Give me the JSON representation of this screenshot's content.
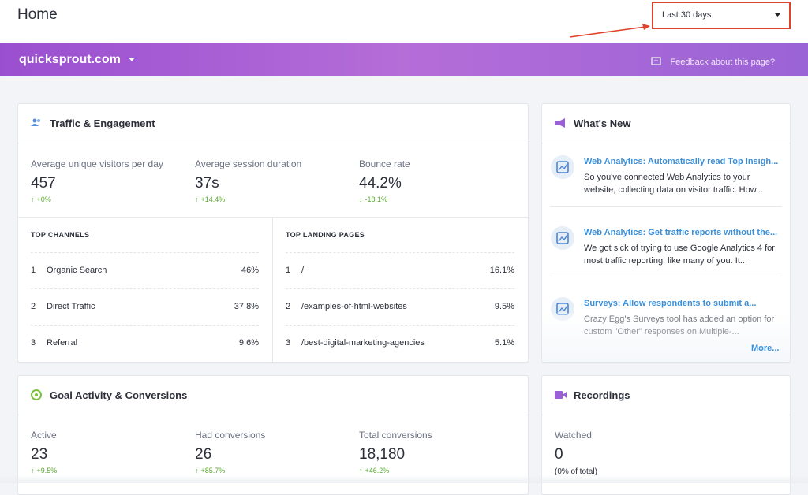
{
  "header": {
    "title": "Home",
    "date_range": "Last 30 days"
  },
  "site_bar": {
    "site": "quicksprout.com",
    "feedback": "Feedback about this page?"
  },
  "traffic": {
    "title": "Traffic & Engagement",
    "metrics": [
      {
        "label": "Average unique visitors per day",
        "value": "457",
        "change": "+0%"
      },
      {
        "label": "Average session duration",
        "value": "37s",
        "change": "+14.4%"
      },
      {
        "label": "Bounce rate",
        "value": "44.2%",
        "change": "-18.1%"
      }
    ],
    "channels": {
      "title": "TOP CHANNELS",
      "rows": [
        [
          "1",
          "Organic Search",
          "46%"
        ],
        [
          "2",
          "Direct Traffic",
          "37.8%"
        ],
        [
          "3",
          "Referral",
          "9.6%"
        ]
      ]
    },
    "landing_pages": {
      "title": "TOP LANDING PAGES",
      "rows": [
        [
          "1",
          "/",
          "16.1%"
        ],
        [
          "2",
          "/examples-of-html-websites",
          "9.5%"
        ],
        [
          "3",
          "/best-digital-marketing-agencies",
          "5.1%"
        ]
      ]
    }
  },
  "whats_new": {
    "title": "What's New",
    "items": [
      {
        "title": "Web Analytics: Automatically read Top Insigh...",
        "body": "So you've connected Web Analytics to your website, collecting data on visitor traffic. How..."
      },
      {
        "title": "Web Analytics: Get traffic reports without the...",
        "body": "We got sick of trying to use Google Analytics 4 for most traffic reporting, like many of you. It..."
      },
      {
        "title": "Surveys: Allow respondents to submit a...",
        "body": "Crazy Egg's Surveys tool has added an option for custom \"Other\" responses on Multiple-..."
      }
    ],
    "more": "More..."
  },
  "goals": {
    "title": "Goal Activity & Conversions",
    "metrics": [
      {
        "label": "Active",
        "value": "23",
        "change": "+9.5%"
      },
      {
        "label": "Had conversions",
        "value": "26",
        "change": "+85.7%"
      },
      {
        "label": "Total conversions",
        "value": "18,180",
        "change": "+46.2%"
      }
    ]
  },
  "recordings": {
    "title": "Recordings",
    "label": "Watched",
    "value": "0",
    "sub": "(0% of total)"
  }
}
